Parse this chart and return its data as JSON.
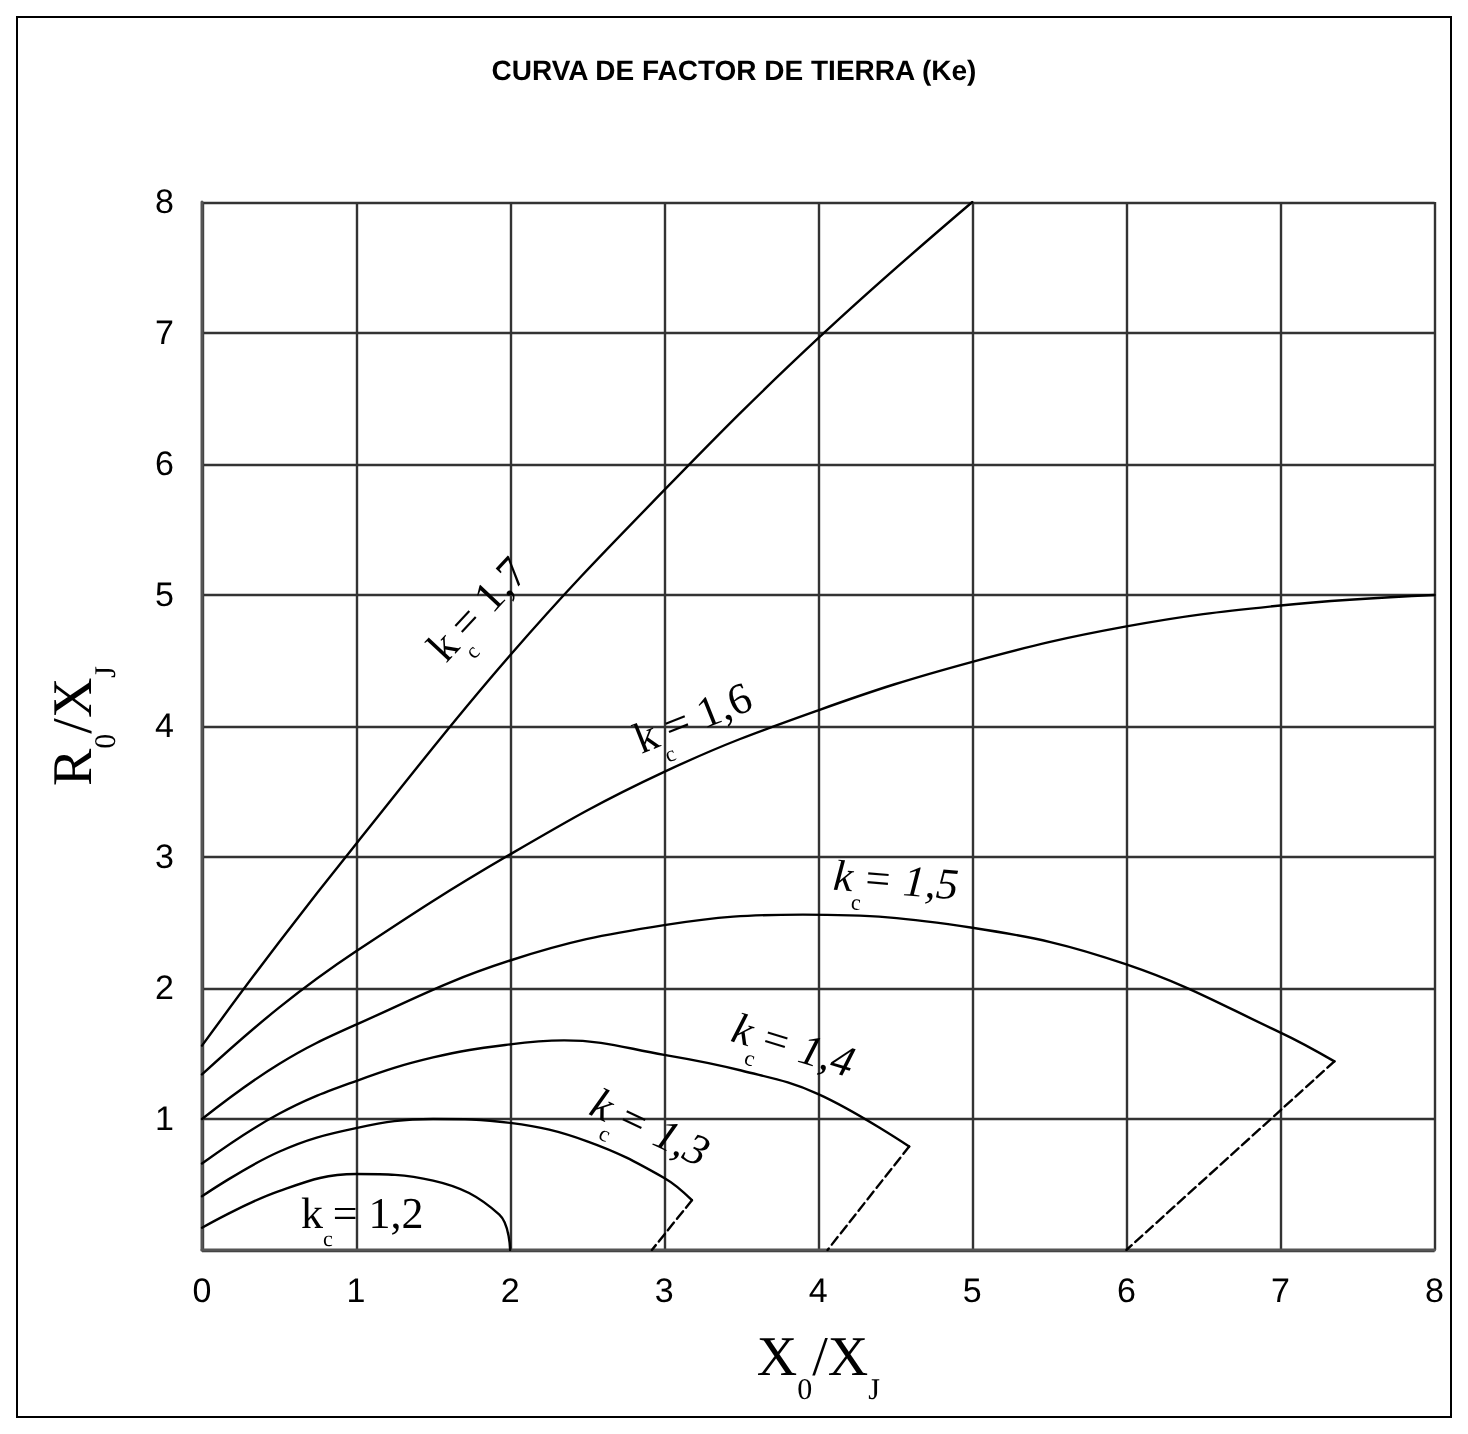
{
  "chart_data": {
    "type": "line",
    "title": "CURVA DE FACTOR DE TIERRA (Ke)",
    "xlabel": "X$_{0}$/X$_{J}$",
    "ylabel": "R$_{0}$/X$_{J}$",
    "xlim": [
      0,
      8
    ],
    "ylim": [
      0,
      8
    ],
    "xticks": [
      0,
      1,
      2,
      3,
      4,
      5,
      6,
      7,
      8
    ],
    "yticks": [
      {
        "value": 0,
        "label": null
      },
      1,
      2,
      3,
      4,
      5,
      6,
      7,
      8
    ],
    "grid": true,
    "legend": false,
    "marker": "none",
    "line_style": "solid",
    "series": [
      {
        "name": "k$_{c}$= 1,2",
        "color": "#000000",
        "x": [
          0,
          0.5,
          1,
          1.5,
          1.93,
          2.0
        ],
        "values": [
          0.17,
          0.45,
          0.58,
          0.53,
          0.27,
          0
        ]
      },
      {
        "name": "k$_{c}$= 1,3",
        "color": "#000000",
        "x": [
          0,
          0.5,
          1,
          1.5,
          2,
          2.5,
          3,
          3.18
        ],
        "values": [
          0.41,
          0.75,
          0.93,
          1.0,
          0.97,
          0.83,
          0.55,
          0.38
        ]
      },
      {
        "name": "k$_{c}$= 1,4",
        "color": "#000000",
        "x": [
          0,
          0.5,
          1,
          1.5,
          2,
          2.35,
          3,
          3.5,
          4,
          4.59
        ],
        "values": [
          0.66,
          1.04,
          1.29,
          1.47,
          1.57,
          1.6,
          1.49,
          1.37,
          1.19,
          0.79
        ]
      },
      {
        "name": "k$_{c}$= 1,5",
        "color": "#000000",
        "x": [
          0,
          0.5,
          1,
          2,
          3,
          3.9,
          5,
          6,
          7,
          7.35
        ],
        "values": [
          1.0,
          1.42,
          1.72,
          2.21,
          2.48,
          2.56,
          2.46,
          2.18,
          1.66,
          1.44
        ]
      },
      {
        "name": "k$_{c}$= 1,6",
        "color": "#000000",
        "x": [
          0,
          0.5,
          1,
          2,
          3,
          4,
          5,
          6,
          7,
          8
        ],
        "values": [
          1.34,
          1.85,
          2.28,
          3.02,
          3.65,
          4.12,
          4.49,
          4.76,
          4.92,
          5.0
        ]
      },
      {
        "name": "k$_{c}$= 1,7",
        "color": "#000000",
        "x": [
          0,
          0.5,
          1,
          2,
          3,
          4,
          5
        ],
        "values": [
          1.56,
          2.35,
          3.1,
          4.54,
          5.8,
          6.96,
          8.0
        ]
      },
      {
        "color": "#000000",
        "line_style": "dashed",
        "x": [
          3.18,
          2.92
        ],
        "values": [
          0.38,
          0
        ]
      },
      {
        "color": "#000000",
        "line_style": "dashed",
        "x": [
          4.59,
          4.06
        ],
        "values": [
          0.79,
          0
        ]
      },
      {
        "color": "#000000",
        "line_style": "dashed",
        "x": [
          7.35,
          6
        ],
        "values": [
          1.44,
          0
        ]
      }
    ]
  }
}
